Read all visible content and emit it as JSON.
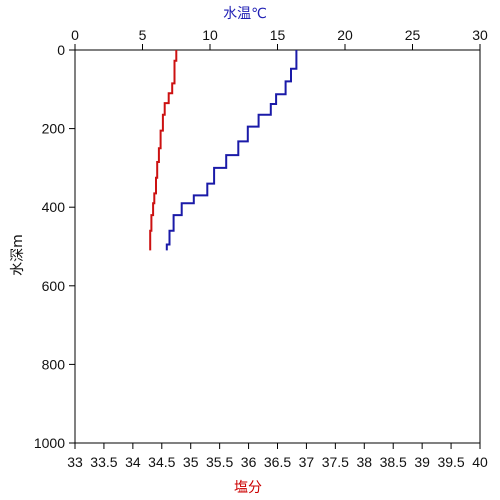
{
  "chart_data": {
    "type": "line",
    "top_axis": {
      "label": "水温℃",
      "color": "#1f1fb4",
      "range": [
        0,
        30
      ],
      "ticks": [
        "0",
        "5",
        "10",
        "15",
        "20",
        "25",
        "30"
      ]
    },
    "bottom_axis": {
      "label": "塩分",
      "color": "#cc0000",
      "range": [
        33,
        40
      ],
      "ticks": [
        "33",
        "33.5",
        "34",
        "34.5",
        "35",
        "35.5",
        "36",
        "36.5",
        "37",
        "37.5",
        "38",
        "38.5",
        "39",
        "39.5",
        "40"
      ]
    },
    "left_axis": {
      "label": "水深m",
      "color": "#111111",
      "range": [
        0,
        1000
      ],
      "inverted": true,
      "ticks": [
        "0",
        "200",
        "400",
        "600",
        "800",
        "1000"
      ]
    },
    "grid": false,
    "series": [
      {
        "color": "#1a1aa8",
        "axis": "top",
        "points": [
          {
            "x": 16.4,
            "y": 0
          },
          {
            "x": 16.4,
            "y": 35
          },
          {
            "x": 16.0,
            "y": 60
          },
          {
            "x": 15.6,
            "y": 100
          },
          {
            "x": 14.9,
            "y": 125
          },
          {
            "x": 14.5,
            "y": 150
          },
          {
            "x": 13.6,
            "y": 180
          },
          {
            "x": 12.8,
            "y": 210
          },
          {
            "x": 12.1,
            "y": 255
          },
          {
            "x": 11.2,
            "y": 280
          },
          {
            "x": 10.3,
            "y": 320
          },
          {
            "x": 9.8,
            "y": 360
          },
          {
            "x": 8.8,
            "y": 380
          },
          {
            "x": 7.9,
            "y": 400
          },
          {
            "x": 7.3,
            "y": 440
          },
          {
            "x": 7.0,
            "y": 480
          },
          {
            "x": 6.8,
            "y": 510
          }
        ]
      },
      {
        "color": "#cc1111",
        "axis": "bottom",
        "points": [
          {
            "x": 34.75,
            "y": 0
          },
          {
            "x": 34.75,
            "y": 15
          },
          {
            "x": 34.72,
            "y": 40
          },
          {
            "x": 34.72,
            "y": 70
          },
          {
            "x": 34.68,
            "y": 100
          },
          {
            "x": 34.62,
            "y": 120
          },
          {
            "x": 34.55,
            "y": 150
          },
          {
            "x": 34.52,
            "y": 180
          },
          {
            "x": 34.48,
            "y": 230
          },
          {
            "x": 34.45,
            "y": 270
          },
          {
            "x": 34.42,
            "y": 300
          },
          {
            "x": 34.4,
            "y": 350
          },
          {
            "x": 34.37,
            "y": 380
          },
          {
            "x": 34.35,
            "y": 400
          },
          {
            "x": 34.32,
            "y": 440
          },
          {
            "x": 34.3,
            "y": 480
          },
          {
            "x": 34.3,
            "y": 510
          }
        ]
      }
    ]
  }
}
